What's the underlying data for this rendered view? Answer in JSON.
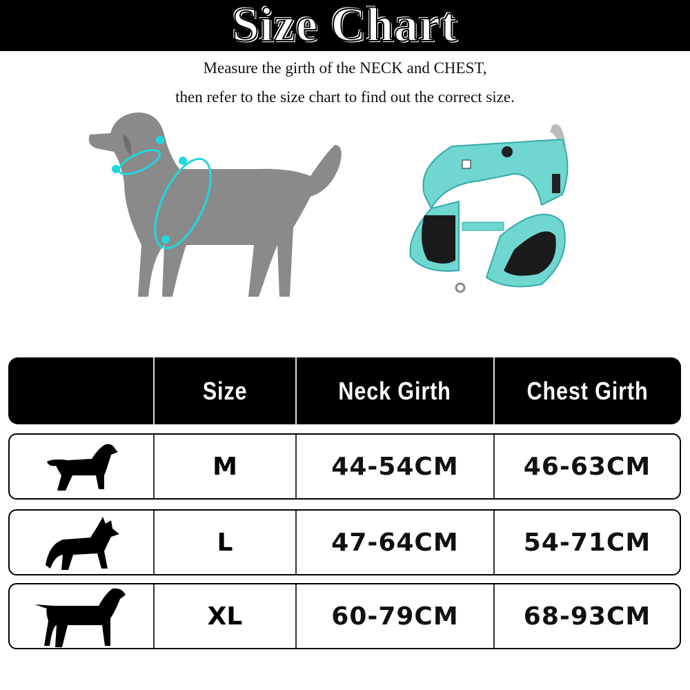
{
  "title": "Size Chart",
  "instructions": [
    "Measure the girth of the NECK and CHEST,",
    "then refer to the size chart to find out the correct size."
  ],
  "colors": {
    "accent": "#1ed8e0",
    "harness": "#6fd6d0",
    "dog_illustration": "#8a8a8a",
    "banner": "#000000"
  },
  "table": {
    "headers": [
      "",
      "Size",
      "Neck Girth",
      "Chest Girth"
    ],
    "rows": [
      {
        "icon": "medium-dog-icon",
        "size": "M",
        "neck": "44-54CM",
        "chest": "46-63CM"
      },
      {
        "icon": "large-dog-icon",
        "size": "L",
        "neck": "47-64CM",
        "chest": "54-71CM"
      },
      {
        "icon": "xl-dog-icon",
        "size": "XL",
        "neck": "60-79CM",
        "chest": "68-93CM"
      }
    ]
  }
}
